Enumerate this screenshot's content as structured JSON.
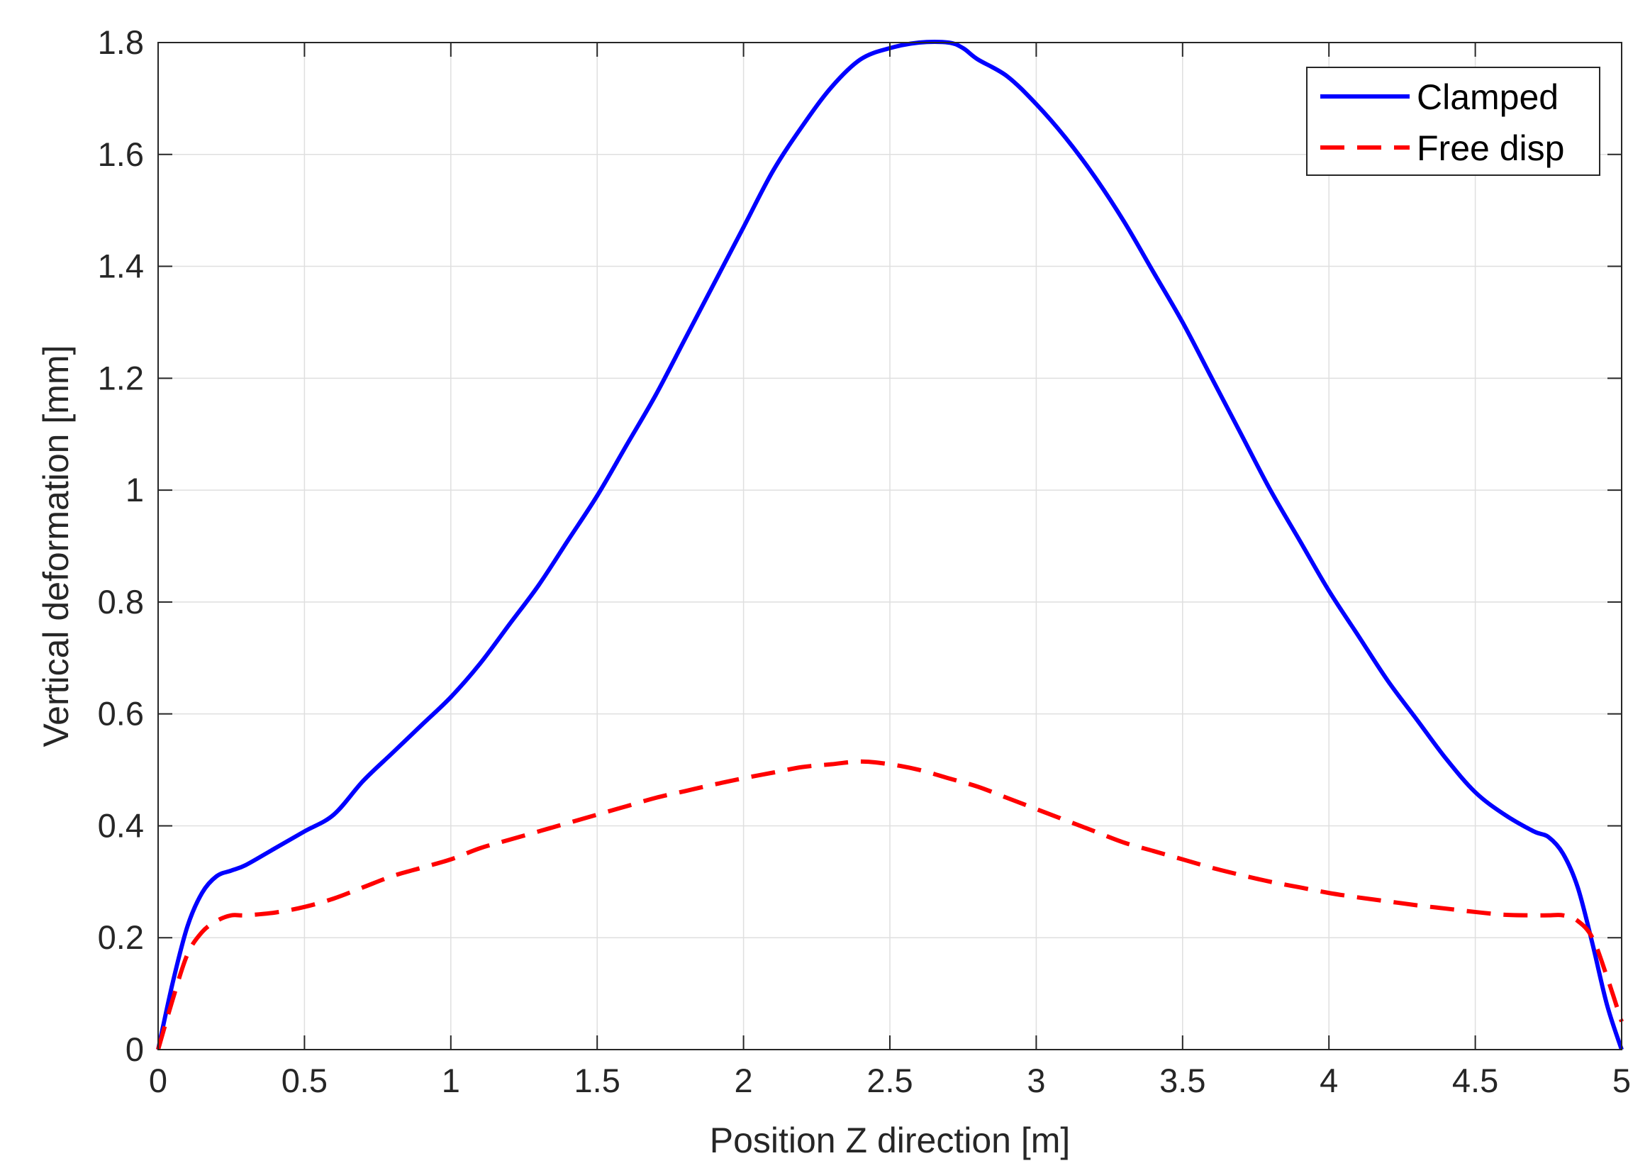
{
  "chart_data": {
    "type": "line",
    "title": "",
    "xlabel": "Position Z direction [m]",
    "ylabel": "Vertical deformation [mm]",
    "xlim": [
      0,
      5
    ],
    "ylim": [
      0,
      1.8
    ],
    "xticks": [
      0,
      0.5,
      1,
      1.5,
      2,
      2.5,
      3,
      3.5,
      4,
      4.5,
      5
    ],
    "yticks": [
      0,
      0.2,
      0.4,
      0.6,
      0.8,
      1,
      1.2,
      1.4,
      1.6,
      1.8
    ],
    "xtick_labels": [
      "0",
      "0.5",
      "1",
      "1.5",
      "2",
      "2.5",
      "3",
      "3.5",
      "4",
      "4.5",
      "5"
    ],
    "ytick_labels": [
      "0",
      "0.2",
      "0.4",
      "0.6",
      "0.8",
      "1",
      "1.2",
      "1.4",
      "1.6",
      "1.8"
    ],
    "grid": true,
    "legend_position": "top-right",
    "series": [
      {
        "name": "Clamped",
        "color": "#0000ff",
        "style": "solid",
        "x": [
          0,
          0.05,
          0.1,
          0.15,
          0.2,
          0.25,
          0.3,
          0.4,
          0.5,
          0.6,
          0.7,
          0.8,
          0.9,
          1.0,
          1.1,
          1.2,
          1.3,
          1.4,
          1.5,
          1.6,
          1.7,
          1.8,
          1.9,
          2.0,
          2.1,
          2.2,
          2.3,
          2.4,
          2.5,
          2.6,
          2.7,
          2.75,
          2.8,
          2.9,
          3.0,
          3.1,
          3.2,
          3.3,
          3.4,
          3.5,
          3.6,
          3.7,
          3.8,
          3.9,
          4.0,
          4.1,
          4.2,
          4.3,
          4.4,
          4.5,
          4.6,
          4.7,
          4.75,
          4.8,
          4.85,
          4.9,
          4.95,
          5.0
        ],
        "y": [
          0,
          0.12,
          0.22,
          0.28,
          0.31,
          0.32,
          0.33,
          0.36,
          0.39,
          0.42,
          0.48,
          0.53,
          0.58,
          0.63,
          0.69,
          0.76,
          0.83,
          0.91,
          0.99,
          1.08,
          1.17,
          1.27,
          1.37,
          1.47,
          1.57,
          1.65,
          1.72,
          1.77,
          1.79,
          1.8,
          1.8,
          1.79,
          1.77,
          1.74,
          1.69,
          1.63,
          1.56,
          1.48,
          1.39,
          1.3,
          1.2,
          1.1,
          1.0,
          0.91,
          0.82,
          0.74,
          0.66,
          0.59,
          0.52,
          0.46,
          0.42,
          0.39,
          0.38,
          0.35,
          0.29,
          0.19,
          0.08,
          0.0
        ]
      },
      {
        "name": "Free disp",
        "color": "#ff0000",
        "style": "dashed",
        "x": [
          0,
          0.05,
          0.1,
          0.15,
          0.2,
          0.25,
          0.3,
          0.4,
          0.5,
          0.6,
          0.7,
          0.8,
          0.9,
          1.0,
          1.1,
          1.2,
          1.3,
          1.4,
          1.5,
          1.6,
          1.7,
          1.8,
          1.9,
          2.0,
          2.1,
          2.2,
          2.3,
          2.4,
          2.5,
          2.6,
          2.7,
          2.8,
          2.9,
          3.0,
          3.1,
          3.2,
          3.3,
          3.4,
          3.5,
          3.6,
          3.7,
          3.8,
          3.9,
          4.0,
          4.1,
          4.2,
          4.3,
          4.4,
          4.5,
          4.6,
          4.7,
          4.75,
          4.8,
          4.85,
          4.9,
          4.95,
          5.0
        ],
        "y": [
          0,
          0.09,
          0.17,
          0.21,
          0.23,
          0.24,
          0.24,
          0.245,
          0.255,
          0.27,
          0.29,
          0.31,
          0.325,
          0.34,
          0.36,
          0.375,
          0.39,
          0.405,
          0.42,
          0.435,
          0.45,
          0.462,
          0.474,
          0.485,
          0.495,
          0.505,
          0.51,
          0.515,
          0.51,
          0.5,
          0.485,
          0.47,
          0.45,
          0.43,
          0.41,
          0.39,
          0.37,
          0.355,
          0.34,
          0.325,
          0.312,
          0.3,
          0.29,
          0.28,
          0.272,
          0.265,
          0.258,
          0.252,
          0.246,
          0.241,
          0.24,
          0.24,
          0.24,
          0.23,
          0.2,
          0.13,
          0.05
        ]
      }
    ]
  }
}
